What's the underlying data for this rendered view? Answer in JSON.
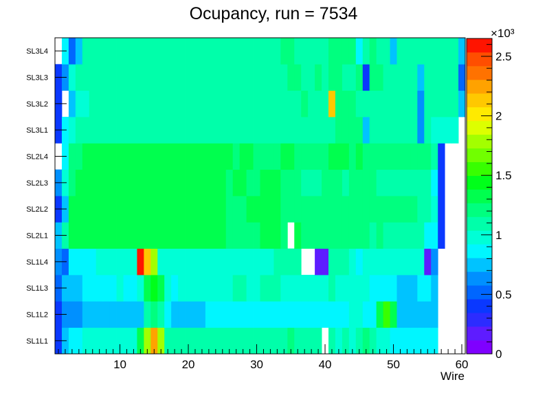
{
  "chart_data": {
    "type": "heatmap",
    "title": "Ocupancy, run = 7534",
    "xlabel": "Wire",
    "ylabel": "",
    "x_range": [
      0.5,
      60.5
    ],
    "x_ticks": [
      10,
      20,
      30,
      40,
      50,
      60
    ],
    "y_categories": [
      "SL1L1",
      "SL1L2",
      "SL1L3",
      "SL1L4",
      "SL2L1",
      "SL2L2",
      "SL2L3",
      "SL2L4",
      "SL3L1",
      "SL3L2",
      "SL3L3",
      "SL3L4"
    ],
    "z_range": [
      0,
      2650
    ],
    "z_ticks": [
      0,
      0.5,
      1,
      1.5,
      2,
      2.5
    ],
    "z_multiplier": "×10³",
    "palette": [
      "#7f00ff",
      "#5e1cff",
      "#2c2cff",
      "#0a38ff",
      "#0066ff",
      "#0090ff",
      "#00c3ff",
      "#00f6ff",
      "#00ffd6",
      "#00ffaa",
      "#00ff7f",
      "#00ff4e",
      "#00ff1a",
      "#38ff00",
      "#71ff00",
      "#a3ff00",
      "#ddff00",
      "#ffea00",
      "#ffc800",
      "#ffa200",
      "#ff7200",
      "#ff4e00",
      "#ff1400"
    ],
    "rows": [
      {
        "layer": "SL1L1",
        "values": [
          450,
          750,
          850,
          850,
          950,
          950,
          1000,
          1000,
          950,
          1000,
          950,
          950,
          1300,
          1800,
          2300,
          1800,
          1050,
          1050,
          1050,
          1050,
          1100,
          1050,
          1100,
          1050,
          1050,
          1050,
          1050,
          1050,
          1100,
          1100,
          1150,
          1150,
          1100,
          1150,
          1200,
          1150,
          1050,
          1050,
          1050,
          0,
          1050,
          1000,
          1050,
          1000,
          1050,
          1200,
          1050,
          950,
          1000,
          850,
          850,
          850,
          900,
          900,
          850,
          850,
          0,
          0,
          0,
          0
        ]
      },
      {
        "layer": "SL1L2",
        "values": [
          450,
          650,
          650,
          650,
          800,
          800,
          800,
          800,
          750,
          800,
          750,
          750,
          800,
          1100,
          1200,
          1100,
          900,
          800,
          800,
          800,
          800,
          800,
          850,
          850,
          850,
          850,
          850,
          850,
          850,
          850,
          850,
          850,
          850,
          850,
          850,
          850,
          850,
          850,
          850,
          850,
          850,
          850,
          850,
          950,
          950,
          900,
          900,
          1300,
          1600,
          1300,
          800,
          750,
          800,
          800,
          800,
          800,
          0,
          0,
          0,
          0
        ]
      },
      {
        "layer": "SL1L3",
        "values": [
          500,
          750,
          750,
          800,
          900,
          900,
          900,
          900,
          900,
          950,
          900,
          900,
          950,
          1350,
          1400,
          1300,
          950,
          900,
          950,
          950,
          950,
          950,
          950,
          950,
          950,
          950,
          1050,
          1050,
          1000,
          1000,
          1050,
          1050,
          1050,
          1000,
          1000,
          1000,
          1000,
          1000,
          1000,
          1000,
          1050,
          1000,
          1000,
          1000,
          1000,
          1000,
          900,
          900,
          900,
          850,
          800,
          800,
          800,
          900,
          900,
          700,
          0,
          0,
          0,
          0
        ]
      },
      {
        "layer": "SL1L4",
        "values": [
          650,
          500,
          850,
          850,
          900,
          900,
          1000,
          1000,
          1000,
          1000,
          950,
          950,
          2550,
          2150,
          1800,
          1000,
          1000,
          950,
          950,
          950,
          950,
          1000,
          950,
          950,
          950,
          950,
          1000,
          1000,
          1000,
          1000,
          1000,
          1000,
          1050,
          1100,
          1100,
          1050,
          0,
          0,
          150,
          150,
          1050,
          1100,
          1050,
          1000,
          900,
          1000,
          1000,
          1000,
          950,
          950,
          950,
          950,
          950,
          950,
          150,
          600,
          0,
          0,
          0,
          0
        ]
      },
      {
        "layer": "SL2L1",
        "values": [
          800,
          1100,
          1300,
          1350,
          1350,
          1350,
          1350,
          1350,
          1350,
          1350,
          1350,
          1350,
          1350,
          1350,
          1350,
          1350,
          1350,
          1350,
          1350,
          1350,
          1350,
          1350,
          1350,
          1350,
          1350,
          1250,
          1250,
          1250,
          1250,
          1250,
          1300,
          1300,
          1300,
          1250,
          0,
          1300,
          1250,
          1250,
          1250,
          1250,
          1250,
          1200,
          1200,
          1200,
          1200,
          1200,
          1150,
          1200,
          1150,
          1150,
          1150,
          1150,
          1150,
          1150,
          900,
          900,
          400,
          0,
          0,
          0
        ]
      },
      {
        "layer": "SL2L2",
        "values": [
          350,
          800,
          1300,
          1300,
          1350,
          1350,
          1350,
          1350,
          1350,
          1350,
          1350,
          1350,
          1350,
          1350,
          1350,
          1350,
          1350,
          1350,
          1350,
          1350,
          1350,
          1350,
          1350,
          1350,
          1350,
          1250,
          1250,
          1250,
          1300,
          1300,
          1350,
          1350,
          1350,
          1250,
          1250,
          1250,
          1200,
          1200,
          1200,
          1250,
          1250,
          1250,
          1250,
          1200,
          1200,
          1200,
          1200,
          1250,
          1250,
          1250,
          1250,
          1200,
          1200,
          1150,
          1100,
          950,
          400,
          0,
          0,
          0
        ]
      },
      {
        "layer": "SL2L3",
        "values": [
          650,
          950,
          1250,
          1350,
          1350,
          1350,
          1350,
          1350,
          1350,
          1350,
          1350,
          1350,
          1350,
          1350,
          1350,
          1350,
          1350,
          1350,
          1350,
          1350,
          1350,
          1350,
          1350,
          1350,
          1350,
          1250,
          1300,
          1300,
          1250,
          1250,
          1300,
          1300,
          1300,
          1200,
          1200,
          1200,
          1150,
          1150,
          1150,
          1200,
          1200,
          1200,
          1150,
          1200,
          1250,
          1200,
          1200,
          1150,
          1150,
          1150,
          1150,
          1100,
          1050,
          1050,
          1100,
          850,
          400,
          0,
          0,
          0
        ]
      },
      {
        "layer": "SL2L4",
        "values": [
          0,
          900,
          1200,
          1250,
          1300,
          1300,
          1300,
          1300,
          1350,
          1350,
          1300,
          1300,
          1350,
          1350,
          1350,
          1350,
          1350,
          1350,
          1350,
          1350,
          1350,
          1350,
          1350,
          1350,
          1350,
          1300,
          1250,
          1300,
          1300,
          1250,
          1250,
          1250,
          1250,
          1300,
          1300,
          1250,
          1250,
          1250,
          1250,
          1250,
          1300,
          1300,
          1300,
          1250,
          1300,
          1250,
          1200,
          1200,
          1200,
          1200,
          1200,
          1200,
          1200,
          1200,
          1200,
          1050,
          400,
          0,
          0,
          0
        ]
      },
      {
        "layer": "SL3L1",
        "values": [
          450,
          900,
          950,
          1050,
          1050,
          1050,
          1050,
          1100,
          1050,
          1100,
          1100,
          1100,
          1100,
          1100,
          1050,
          1100,
          1050,
          1050,
          1100,
          1050,
          1050,
          1050,
          1050,
          1050,
          1100,
          1050,
          1050,
          1050,
          1050,
          1050,
          1100,
          1100,
          1100,
          1150,
          1150,
          1150,
          1100,
          1100,
          1150,
          1150,
          1150,
          1200,
          1200,
          1200,
          1200,
          700,
          1100,
          1100,
          1050,
          1050,
          1100,
          1050,
          1050,
          650,
          1050,
          1000,
          1000,
          1000,
          950,
          0
        ]
      },
      {
        "layer": "SL3L2",
        "values": [
          350,
          0,
          750,
          1000,
          1000,
          1050,
          1050,
          1050,
          1150,
          1150,
          1100,
          1100,
          1150,
          1100,
          1100,
          1100,
          1150,
          1150,
          1100,
          1100,
          1100,
          1100,
          1100,
          1150,
          1150,
          1100,
          1150,
          1100,
          1100,
          1100,
          1150,
          1150,
          1150,
          1100,
          1100,
          1100,
          1200,
          1150,
          1150,
          1150,
          2150,
          1200,
          1200,
          1200,
          1050,
          1050,
          1100,
          1150,
          1150,
          1100,
          1150,
          1100,
          1100,
          650,
          1100,
          1050,
          1050,
          1050,
          1050,
          700
        ]
      },
      {
        "layer": "SL3L3",
        "values": [
          450,
          600,
          1000,
          1050,
          1050,
          1050,
          1050,
          1050,
          1050,
          1050,
          1050,
          1100,
          1150,
          1150,
          1100,
          1150,
          1150,
          1100,
          1100,
          1100,
          1150,
          1150,
          1150,
          1150,
          1150,
          1100,
          1100,
          1100,
          1100,
          1100,
          1100,
          1150,
          1150,
          1150,
          1200,
          1200,
          1150,
          1150,
          1200,
          1150,
          1200,
          1200,
          1150,
          1150,
          1200,
          450,
          1200,
          1200,
          1150,
          1150,
          1150,
          1100,
          1100,
          800,
          1050,
          1050,
          1050,
          1050,
          1050,
          500
        ]
      },
      {
        "layer": "SL3L4",
        "values": [
          0,
          900,
          550,
          800,
          1050,
          1050,
          1050,
          1050,
          1050,
          1050,
          1050,
          1050,
          1100,
          1100,
          1100,
          1150,
          1100,
          1050,
          1050,
          1050,
          1100,
          1100,
          1100,
          1100,
          1100,
          1050,
          1050,
          1050,
          1050,
          1050,
          1050,
          1050,
          1100,
          1250,
          1250,
          1050,
          1100,
          1150,
          1150,
          1150,
          1250,
          1200,
          1200,
          1200,
          900,
          1150,
          1250,
          1100,
          1100,
          800,
          1150,
          1100,
          1100,
          1050,
          1050,
          1050,
          1050,
          1050,
          1050,
          750
        ]
      }
    ]
  }
}
